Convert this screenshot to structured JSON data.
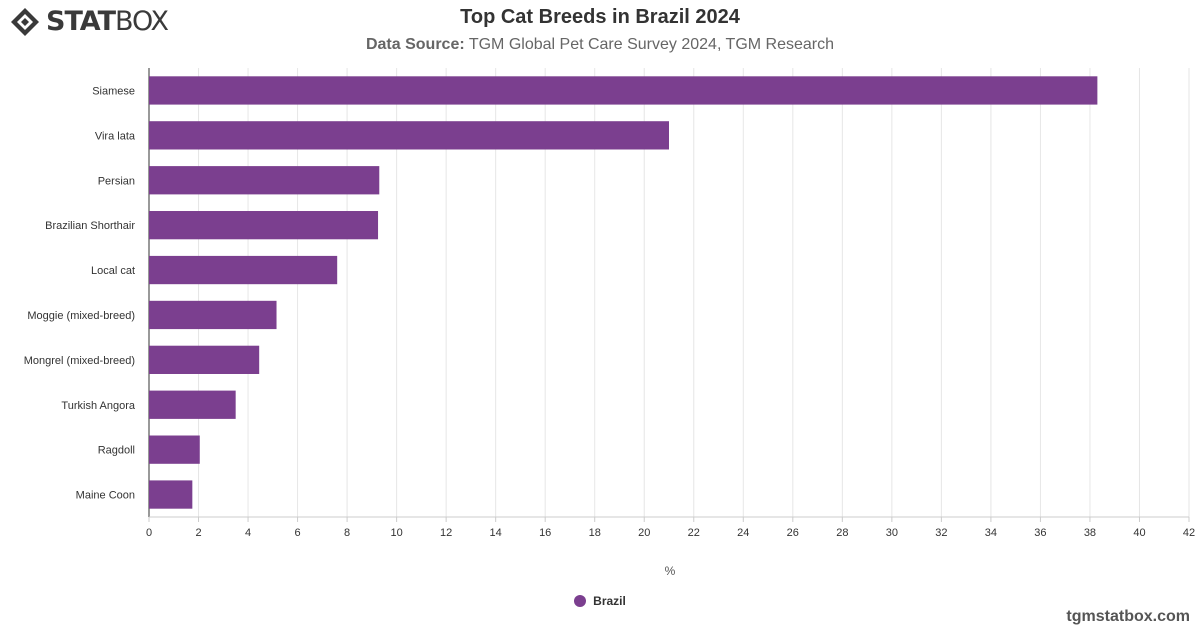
{
  "brand": {
    "logo_bold": "STAT",
    "logo_light": "BOX",
    "icon": "diamond-logo-icon"
  },
  "header": {
    "title": "Top Cat Breeds in Brazil 2024",
    "subtitle_label": "Data Source:",
    "subtitle_text": " TGM Global Pet Care Survey 2024, TGM Research"
  },
  "footer": {
    "site": "tgmstatbox.com"
  },
  "colors": {
    "bar": "#7b3f8f",
    "grid": "#e6e6e6",
    "axis": "#333333"
  },
  "chart_data": {
    "type": "bar",
    "orientation": "horizontal",
    "title": "Top Cat Breeds in Brazil 2024",
    "subtitle": "Data Source: TGM Global Pet Care Survey 2024, TGM Research",
    "xlabel": "%",
    "ylabel": "",
    "xlim": [
      0,
      42
    ],
    "xticks": [
      0,
      2,
      4,
      6,
      8,
      10,
      12,
      14,
      16,
      18,
      20,
      22,
      24,
      26,
      28,
      30,
      32,
      34,
      36,
      38,
      40,
      42
    ],
    "grid": true,
    "legend_position": "bottom",
    "categories": [
      "Siamese",
      "Vira lata",
      "Persian",
      "Brazilian Shorthair",
      "Local cat",
      "Moggie (mixed-breed)",
      "Mongrel (mixed-breed)",
      "Turkish Angora",
      "Ragdoll",
      "Maine Coon"
    ],
    "series": [
      {
        "name": "Brazil",
        "color": "#7b3f8f",
        "values": [
          38.3,
          21.0,
          9.3,
          9.25,
          7.6,
          5.15,
          4.45,
          3.5,
          2.05,
          1.75
        ]
      }
    ]
  }
}
